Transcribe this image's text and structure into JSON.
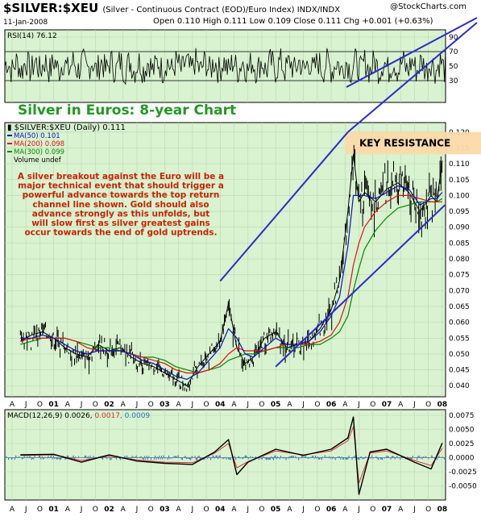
{
  "header": {
    "symbol": "$SILVER:$XEU",
    "description": "(Silver - Continuous Contract (EOD)/Euro Index)  INDX/INDX",
    "date": "11-Jan-2008",
    "ohlc": "Open 0.110  High 0.111  Low 0.109  Close 0.111  Chg +0.001 (+0.63%)",
    "logo": "@StockCharts.com"
  },
  "colors": {
    "panel_bg": "#d9f2d0",
    "grid": "#b8d8b0",
    "price": "#000000",
    "ma50": "#1010c0",
    "ma200": "#e01010",
    "ma300": "#008800",
    "channel": "#2a2ad0",
    "title_green": "#229922",
    "text_red": "#cc2200",
    "resistance_fill": "#fcd9a8",
    "macd_signal": "#d43030",
    "macd_hist": "#2070c0"
  },
  "overlay": {
    "title": "Silver in Euros: 8-year Chart",
    "commentary": [
      "A silver breakout against the Euro will be a",
      "major technical event that should trigger a",
      "powerful advance towards the top return",
      "channel line shown. Gold should also",
      "advance strongly as this unfolds, but",
      "will slow first as silver greatest gains",
      "occur towards the end of gold uptrends."
    ],
    "key_resistance_label": "KEY RESISTANCE"
  },
  "chart_data": [
    {
      "type": "line",
      "panel": "RSI",
      "label": "RSI(14) 76.12",
      "ylim": [
        0,
        100
      ],
      "y_ticks": [
        30,
        50,
        70,
        90
      ],
      "reference_lines": [
        30,
        70
      ],
      "last_value": 76.12
    },
    {
      "type": "line",
      "panel": "price",
      "ylim": [
        0.0365,
        0.123
      ],
      "y_ticks": [
        0.04,
        0.045,
        0.05,
        0.055,
        0.06,
        0.065,
        0.07,
        0.075,
        0.08,
        0.085,
        0.09,
        0.095,
        0.1,
        0.105,
        0.11,
        0.115,
        0.12
      ],
      "legend": [
        {
          "name": "$SILVER:$XEU (Daily) 0.111",
          "value": 0.111
        },
        {
          "name": "MA(50) 0.101",
          "value": 0.101
        },
        {
          "name": "MA(200) 0.098",
          "value": 0.098
        },
        {
          "name": "MA(300) 0.099",
          "value": 0.099
        },
        {
          "name": "Volume undef"
        }
      ],
      "x": [
        2000.4,
        2000.6,
        2000.8,
        2001.0,
        2001.2,
        2001.4,
        2001.6,
        2001.8,
        2002.0,
        2002.2,
        2002.4,
        2002.6,
        2002.8,
        2003.0,
        2003.2,
        2003.4,
        2003.6,
        2003.8,
        2004.0,
        2004.15,
        2004.3,
        2004.45,
        2004.6,
        2004.8,
        2005.0,
        2005.2,
        2005.4,
        2005.6,
        2005.8,
        2006.0,
        2006.15,
        2006.3,
        2006.4,
        2006.5,
        2006.6,
        2006.8,
        2007.0,
        2007.2,
        2007.4,
        2007.6,
        2007.8,
        2007.9,
        2008.0
      ],
      "series": [
        {
          "name": "$SILVER:$XEU",
          "values": [
            0.054,
            0.056,
            0.057,
            0.055,
            0.052,
            0.05,
            0.049,
            0.053,
            0.051,
            0.052,
            0.049,
            0.047,
            0.046,
            0.044,
            0.042,
            0.04,
            0.046,
            0.05,
            0.054,
            0.066,
            0.052,
            0.047,
            0.049,
            0.055,
            0.057,
            0.052,
            0.053,
            0.054,
            0.058,
            0.064,
            0.073,
            0.095,
            0.113,
            0.098,
            0.101,
            0.098,
            0.102,
            0.104,
            0.101,
            0.095,
            0.1,
            0.098,
            0.111
          ]
        },
        {
          "name": "MA(50)",
          "values": [
            0.055,
            0.055,
            0.056,
            0.055,
            0.053,
            0.051,
            0.05,
            0.051,
            0.051,
            0.051,
            0.05,
            0.048,
            0.047,
            0.045,
            0.043,
            0.042,
            0.044,
            0.048,
            0.052,
            0.058,
            0.055,
            0.05,
            0.049,
            0.052,
            0.055,
            0.053,
            0.053,
            0.054,
            0.057,
            0.062,
            0.068,
            0.084,
            0.1,
            0.1,
            0.1,
            0.099,
            0.101,
            0.103,
            0.102,
            0.097,
            0.099,
            0.099,
            0.101
          ]
        },
        {
          "name": "MA(200)",
          "values": [
            0.054,
            0.055,
            0.055,
            0.055,
            0.055,
            0.054,
            0.052,
            0.051,
            0.051,
            0.051,
            0.05,
            0.049,
            0.048,
            0.047,
            0.045,
            0.044,
            0.044,
            0.045,
            0.047,
            0.05,
            0.052,
            0.051,
            0.051,
            0.051,
            0.052,
            0.053,
            0.053,
            0.053,
            0.054,
            0.056,
            0.06,
            0.068,
            0.078,
            0.085,
            0.09,
            0.095,
            0.098,
            0.1,
            0.1,
            0.099,
            0.098,
            0.098,
            0.098
          ]
        },
        {
          "name": "MA(300)",
          "values": [
            0.053,
            0.054,
            0.055,
            0.055,
            0.055,
            0.054,
            0.053,
            0.052,
            0.052,
            0.051,
            0.05,
            0.049,
            0.049,
            0.048,
            0.046,
            0.045,
            0.044,
            0.045,
            0.046,
            0.048,
            0.049,
            0.05,
            0.05,
            0.051,
            0.052,
            0.052,
            0.052,
            0.053,
            0.053,
            0.055,
            0.057,
            0.062,
            0.07,
            0.077,
            0.083,
            0.089,
            0.093,
            0.096,
            0.097,
            0.098,
            0.098,
            0.098,
            0.099
          ]
        }
      ],
      "channel_lines": [
        {
          "from": [
            2004.0,
            0.073
          ],
          "to": [
            2006.3,
            0.12
          ]
        },
        {
          "from": [
            2005.0,
            0.046
          ],
          "to": [
            2008.05,
            0.097
          ]
        }
      ],
      "key_resistance_band": [
        0.113,
        0.12
      ]
    },
    {
      "type": "line",
      "panel": "MACD",
      "label_name": "MACD(12,26,9)",
      "label_values": [
        "0.0026",
        "0.0017",
        "0.0009"
      ],
      "ylim": [
        -0.0075,
        0.0085
      ],
      "y_ticks": [
        -0.005,
        -0.0025,
        0.0,
        0.0025,
        0.005,
        0.0075
      ],
      "x": [
        2000.4,
        2001.0,
        2001.5,
        2002.0,
        2002.5,
        2003.0,
        2003.5,
        2003.9,
        2004.15,
        2004.3,
        2004.5,
        2005.0,
        2005.5,
        2006.0,
        2006.3,
        2006.4,
        2006.5,
        2006.7,
        2007.0,
        2007.5,
        2007.8,
        2008.0
      ],
      "series": [
        {
          "name": "MACD",
          "values": [
            0.0005,
            0.0006,
            -0.0008,
            0.0005,
            -0.0006,
            -0.001,
            -0.0012,
            0.001,
            0.0032,
            -0.003,
            -0.0008,
            0.0015,
            0.0004,
            0.0015,
            0.0035,
            0.0072,
            -0.0065,
            0.001,
            0.0015,
            -0.0008,
            -0.002,
            0.0026
          ]
        },
        {
          "name": "Signal",
          "values": [
            0.0004,
            0.0005,
            -0.0005,
            0.0003,
            -0.0004,
            -0.0008,
            -0.0009,
            0.0008,
            0.0025,
            -0.0018,
            -0.0007,
            0.0012,
            0.0005,
            0.0012,
            0.003,
            0.0055,
            -0.0045,
            0.0008,
            0.0012,
            -0.0005,
            -0.0014,
            0.0017
          ]
        }
      ],
      "histogram_last": 0.0009
    }
  ],
  "x_axis": {
    "labels": [
      {
        "t": 2000.25,
        "text": "A"
      },
      {
        "t": 2000.5,
        "text": "J"
      },
      {
        "t": 2000.75,
        "text": "O"
      },
      {
        "t": 2001.0,
        "text": "01"
      },
      {
        "t": 2001.25,
        "text": "A"
      },
      {
        "t": 2001.5,
        "text": "J"
      },
      {
        "t": 2001.75,
        "text": "O"
      },
      {
        "t": 2002.0,
        "text": "02"
      },
      {
        "t": 2002.25,
        "text": "A"
      },
      {
        "t": 2002.5,
        "text": "J"
      },
      {
        "t": 2002.75,
        "text": "O"
      },
      {
        "t": 2003.0,
        "text": "03"
      },
      {
        "t": 2003.25,
        "text": "A"
      },
      {
        "t": 2003.5,
        "text": "J"
      },
      {
        "t": 2003.75,
        "text": "O"
      },
      {
        "t": 2004.0,
        "text": "04"
      },
      {
        "t": 2004.25,
        "text": "A"
      },
      {
        "t": 2004.5,
        "text": "J"
      },
      {
        "t": 2004.75,
        "text": "O"
      },
      {
        "t": 2005.0,
        "text": "05"
      },
      {
        "t": 2005.25,
        "text": "A"
      },
      {
        "t": 2005.5,
        "text": "J"
      },
      {
        "t": 2005.75,
        "text": "O"
      },
      {
        "t": 2006.0,
        "text": "06"
      },
      {
        "t": 2006.25,
        "text": "A"
      },
      {
        "t": 2006.5,
        "text": "J"
      },
      {
        "t": 2006.75,
        "text": "O"
      },
      {
        "t": 2007.0,
        "text": "07"
      },
      {
        "t": 2007.25,
        "text": "A"
      },
      {
        "t": 2007.5,
        "text": "J"
      },
      {
        "t": 2007.75,
        "text": "O"
      },
      {
        "t": 2008.0,
        "text": "08"
      }
    ]
  }
}
